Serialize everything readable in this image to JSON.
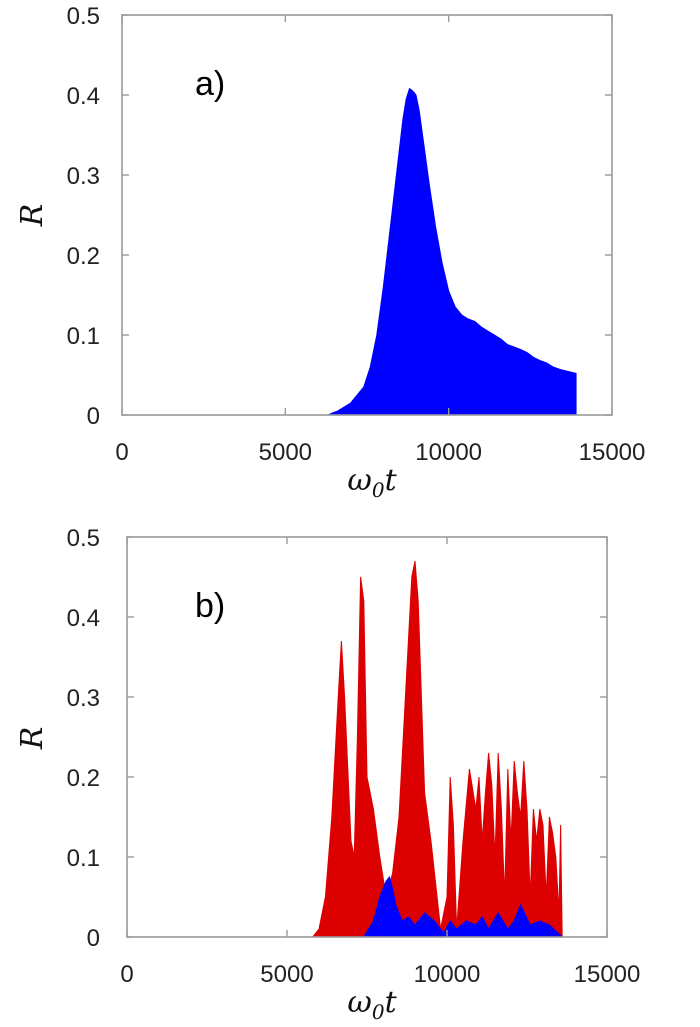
{
  "chart_data": [
    {
      "type": "area",
      "panel_label": "a)",
      "xlabel": {
        "main": "ω",
        "sub": "0",
        "tail": "t"
      },
      "ylabel": "R",
      "xlim": [
        0,
        15000
      ],
      "ylim": [
        0,
        0.5
      ],
      "x_ticks": [
        0,
        5000,
        10000,
        15000
      ],
      "y_ticks": [
        0,
        0.1,
        0.2,
        0.3,
        0.4,
        0.5
      ],
      "x_tick_labels": [
        "0",
        "5000",
        "10000",
        "15000"
      ],
      "y_tick_labels": [
        "0",
        "0.1",
        "0.2",
        "0.3",
        "0.4",
        "0.5"
      ],
      "grid": false,
      "series": [
        {
          "color": "#0000ff",
          "x": [
            0,
            5000,
            6000,
            6300,
            6600,
            7000,
            7400,
            7600,
            7800,
            8000,
            8200,
            8400,
            8600,
            8700,
            8800,
            8900,
            9000,
            9100,
            9200,
            9400,
            9600,
            9800,
            10000,
            10200,
            10400,
            10600,
            10800,
            11000,
            11200,
            11400,
            11600,
            11800,
            12000,
            12200,
            12400,
            12600,
            12800,
            13000,
            13200,
            13400,
            13600,
            13900
          ],
          "y": [
            0,
            0,
            0,
            0,
            0.005,
            0.015,
            0.035,
            0.06,
            0.1,
            0.16,
            0.23,
            0.3,
            0.37,
            0.395,
            0.408,
            0.405,
            0.4,
            0.38,
            0.35,
            0.29,
            0.235,
            0.19,
            0.155,
            0.135,
            0.125,
            0.12,
            0.117,
            0.11,
            0.105,
            0.1,
            0.095,
            0.088,
            0.085,
            0.082,
            0.078,
            0.072,
            0.068,
            0.065,
            0.06,
            0.057,
            0.055,
            0.052
          ]
        }
      ]
    },
    {
      "type": "area",
      "panel_label": "b)",
      "xlabel": {
        "main": "ω",
        "sub": "0",
        "tail": "t"
      },
      "ylabel": "R",
      "xlim": [
        0,
        15000
      ],
      "ylim": [
        0,
        0.5
      ],
      "x_ticks": [
        0,
        5000,
        10000,
        15000
      ],
      "y_ticks": [
        0,
        0.1,
        0.2,
        0.3,
        0.4,
        0.5
      ],
      "x_tick_labels": [
        "0",
        "5000",
        "10000",
        "15000"
      ],
      "y_tick_labels": [
        "0",
        "0.1",
        "0.2",
        "0.3",
        "0.4",
        "0.5"
      ],
      "grid": false,
      "series": [
        {
          "color": "#dd0000",
          "x": [
            0,
            5000,
            5800,
            6000,
            6200,
            6400,
            6600,
            6700,
            6800,
            7000,
            7100,
            7200,
            7300,
            7400,
            7500,
            7700,
            7900,
            8100,
            8300,
            8500,
            8700,
            8900,
            9000,
            9100,
            9200,
            9300,
            9500,
            9800,
            10000,
            10100,
            10200,
            10300,
            10500,
            10700,
            10900,
            11000,
            11100,
            11200,
            11300,
            11400,
            11500,
            11600,
            11700,
            11800,
            11900,
            12000,
            12100,
            12200,
            12300,
            12400,
            12500,
            12600,
            12700,
            12800,
            12900,
            13000,
            13100,
            13200,
            13300,
            13400,
            13500,
            13550,
            13600
          ],
          "y": [
            0,
            0,
            0,
            0.01,
            0.05,
            0.15,
            0.3,
            0.37,
            0.3,
            0.12,
            0.1,
            0.25,
            0.45,
            0.42,
            0.2,
            0.16,
            0.1,
            0.05,
            0.08,
            0.15,
            0.3,
            0.45,
            0.47,
            0.42,
            0.3,
            0.18,
            0.12,
            0.01,
            0.05,
            0.2,
            0.14,
            0.01,
            0.12,
            0.21,
            0.16,
            0.2,
            0.12,
            0.18,
            0.23,
            0.19,
            0.1,
            0.23,
            0.16,
            0.05,
            0.21,
            0.12,
            0.22,
            0.18,
            0.15,
            0.22,
            0.16,
            0.05,
            0.16,
            0.12,
            0.16,
            0.14,
            0.05,
            0.15,
            0.13,
            0.1,
            0.03,
            0.14,
            0.0
          ]
        },
        {
          "color": "#0000ff",
          "x": [
            0,
            5000,
            7400,
            7700,
            7900,
            8100,
            8200,
            8300,
            8400,
            8600,
            8800,
            9000,
            9300,
            9600,
            9900,
            10100,
            10300,
            10600,
            10900,
            11100,
            11300,
            11600,
            11900,
            12100,
            12300,
            12600,
            12900,
            13200,
            13600
          ],
          "y": [
            0,
            0,
            0,
            0.02,
            0.05,
            0.07,
            0.075,
            0.06,
            0.04,
            0.02,
            0.025,
            0.015,
            0.03,
            0.02,
            0.005,
            0.02,
            0.01,
            0.02,
            0.015,
            0.025,
            0.01,
            0.03,
            0.01,
            0.02,
            0.04,
            0.015,
            0.02,
            0.015,
            0.0
          ]
        }
      ]
    }
  ]
}
